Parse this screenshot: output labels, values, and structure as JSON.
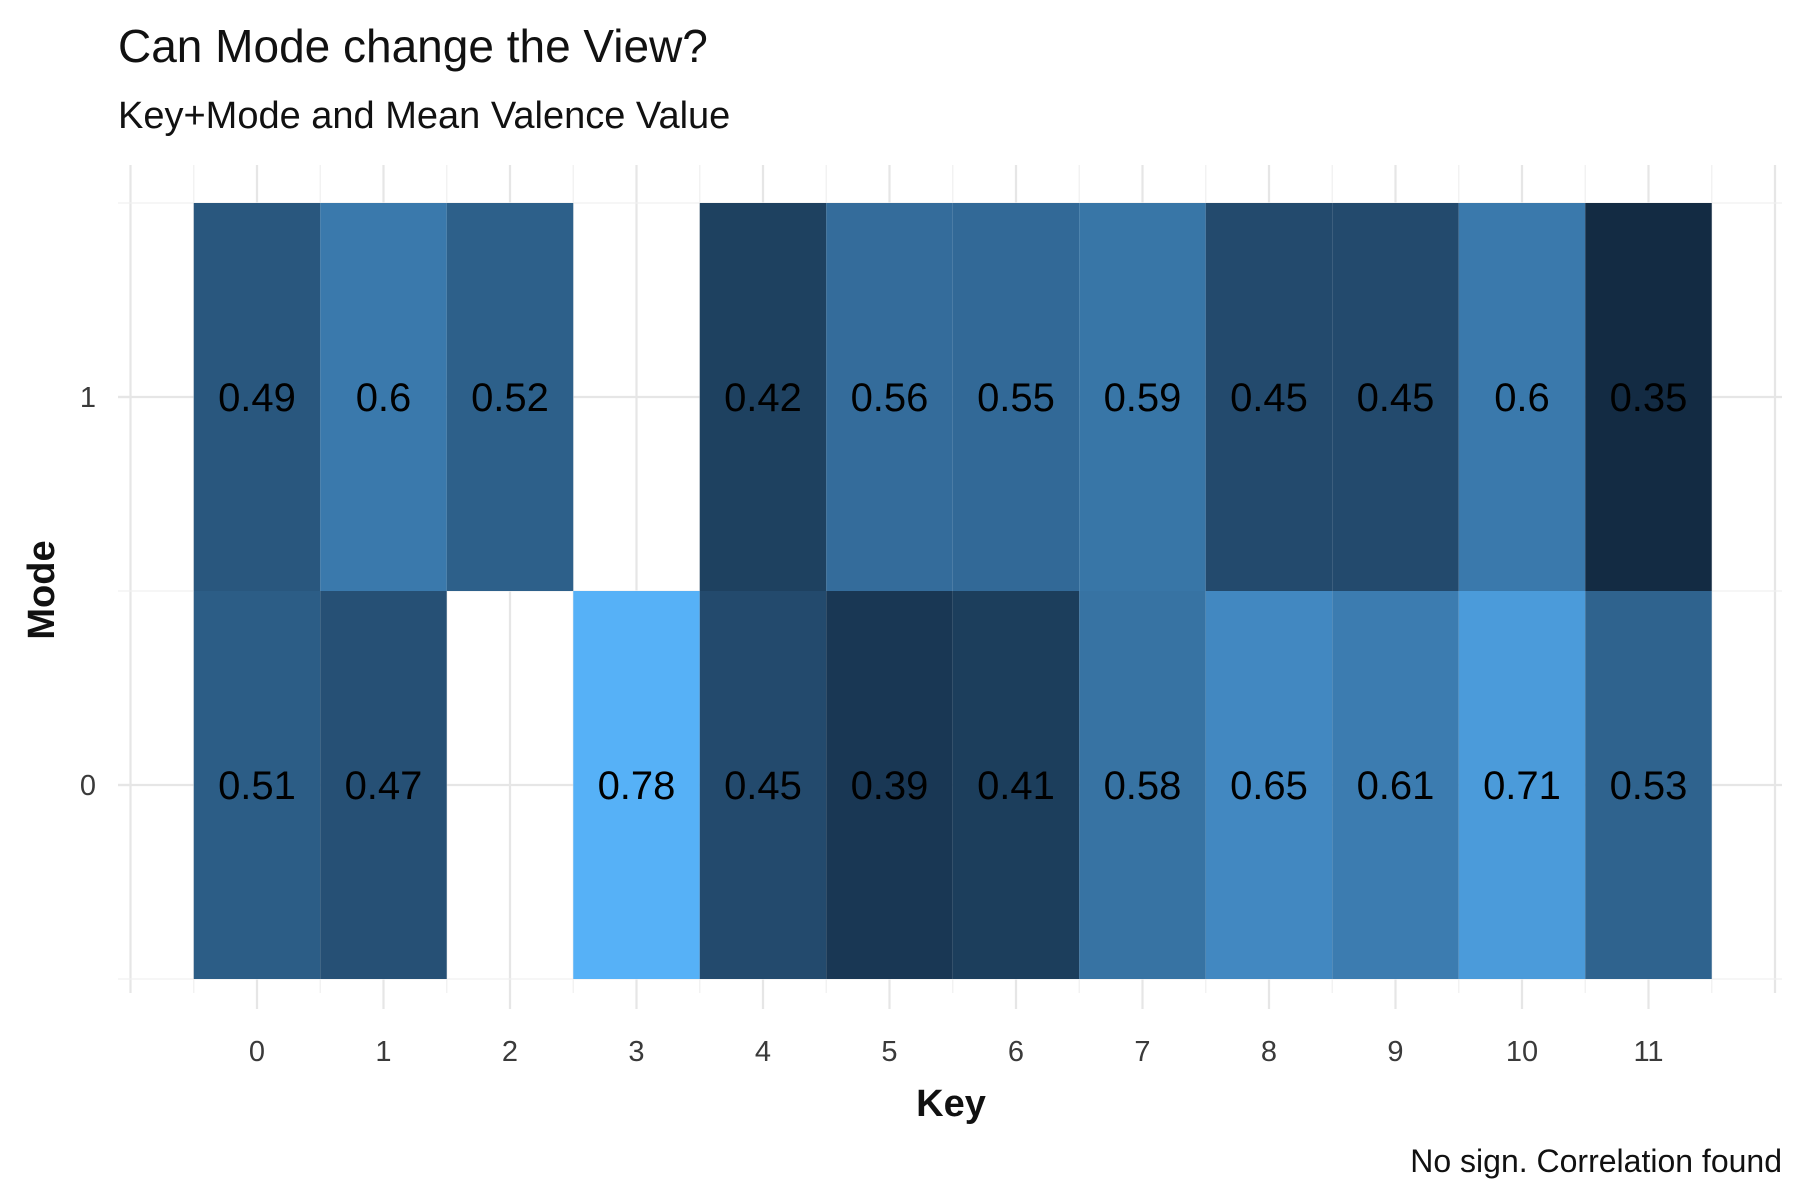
{
  "chart_data": {
    "type": "heatmap",
    "title": "Can Mode change the View?",
    "subtitle": "Key+Mode and Mean Valence Value",
    "xlabel": "Key",
    "ylabel": "Mode",
    "caption": "No sign. Correlation found",
    "x_categories": [
      "0",
      "1",
      "2",
      "3",
      "4",
      "5",
      "6",
      "7",
      "8",
      "9",
      "10",
      "11"
    ],
    "y_categories": [
      "0",
      "1"
    ],
    "cells": [
      {
        "key": 0,
        "mode": 1,
        "value": 0.49,
        "label": "0.49"
      },
      {
        "key": 1,
        "mode": 1,
        "value": 0.6,
        "label": "0.6"
      },
      {
        "key": 2,
        "mode": 1,
        "value": 0.52,
        "label": "0.52"
      },
      {
        "key": 4,
        "mode": 1,
        "value": 0.42,
        "label": "0.42"
      },
      {
        "key": 5,
        "mode": 1,
        "value": 0.56,
        "label": "0.56"
      },
      {
        "key": 6,
        "mode": 1,
        "value": 0.55,
        "label": "0.55"
      },
      {
        "key": 7,
        "mode": 1,
        "value": 0.59,
        "label": "0.59"
      },
      {
        "key": 8,
        "mode": 1,
        "value": 0.45,
        "label": "0.45"
      },
      {
        "key": 9,
        "mode": 1,
        "value": 0.45,
        "label": "0.45"
      },
      {
        "key": 10,
        "mode": 1,
        "value": 0.6,
        "label": "0.6"
      },
      {
        "key": 11,
        "mode": 1,
        "value": 0.35,
        "label": "0.35"
      },
      {
        "key": 0,
        "mode": 0,
        "value": 0.51,
        "label": "0.51"
      },
      {
        "key": 1,
        "mode": 0,
        "value": 0.47,
        "label": "0.47"
      },
      {
        "key": 3,
        "mode": 0,
        "value": 0.78,
        "label": "0.78"
      },
      {
        "key": 4,
        "mode": 0,
        "value": 0.45,
        "label": "0.45"
      },
      {
        "key": 5,
        "mode": 0,
        "value": 0.39,
        "label": "0.39"
      },
      {
        "key": 6,
        "mode": 0,
        "value": 0.41,
        "label": "0.41"
      },
      {
        "key": 7,
        "mode": 0,
        "value": 0.58,
        "label": "0.58"
      },
      {
        "key": 8,
        "mode": 0,
        "value": 0.65,
        "label": "0.65"
      },
      {
        "key": 9,
        "mode": 0,
        "value": 0.61,
        "label": "0.61"
      },
      {
        "key": 10,
        "mode": 0,
        "value": 0.71,
        "label": "0.71"
      },
      {
        "key": 11,
        "mode": 0,
        "value": 0.53,
        "label": "0.53"
      }
    ],
    "color_scale": {
      "low": "#132B43",
      "high": "#56B1F7"
    },
    "grid": true,
    "legend": "none"
  }
}
